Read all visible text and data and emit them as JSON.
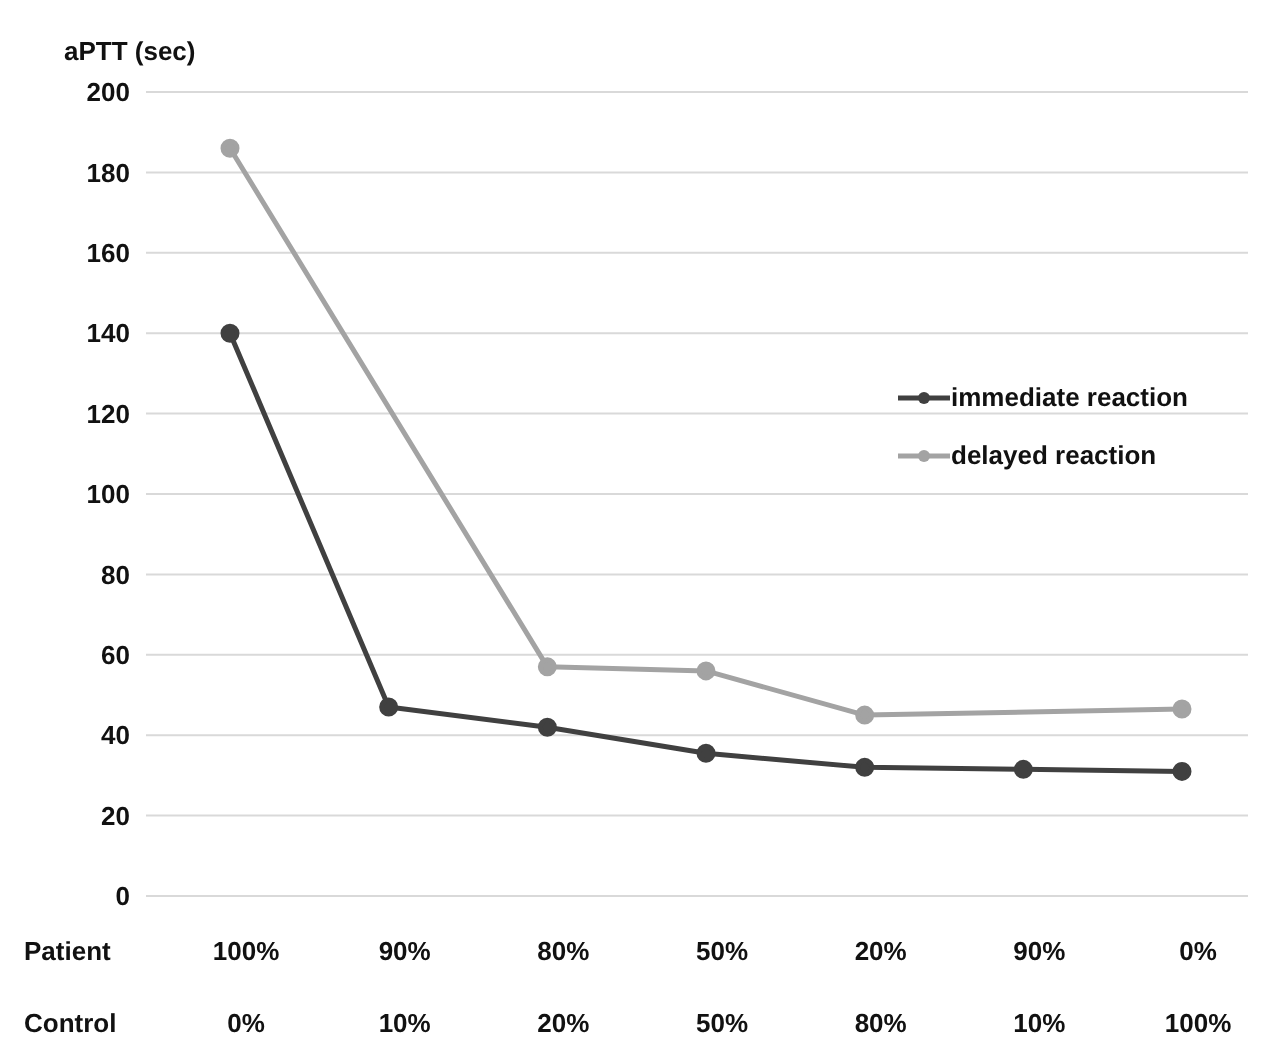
{
  "chart_data": {
    "type": "line",
    "ylabel": "aPTT (sec)",
    "categories": [
      "100%\n0%",
      "90%\n10%",
      "80%\n20%",
      "50%\n50%",
      "20%\n80%",
      "90%\n10%",
      "0%\n100%"
    ],
    "annotations": [
      "Patient",
      "Control"
    ],
    "series": [
      {
        "name": "immediate reaction",
        "color": "#404040",
        "values": [
          140,
          47,
          42,
          35.5,
          32,
          31.5,
          31
        ]
      },
      {
        "name": "delayed reaction",
        "color": "#a3a3a3",
        "values": [
          186,
          null,
          57,
          56,
          45,
          null,
          46.5
        ]
      }
    ],
    "ylim": [
      0,
      200
    ],
    "yticks": [
      0,
      20,
      40,
      60,
      80,
      100,
      120,
      140,
      160,
      180,
      200
    ],
    "grid": "y",
    "legend": "right",
    "marker": "circle",
    "line_style": "solid"
  }
}
